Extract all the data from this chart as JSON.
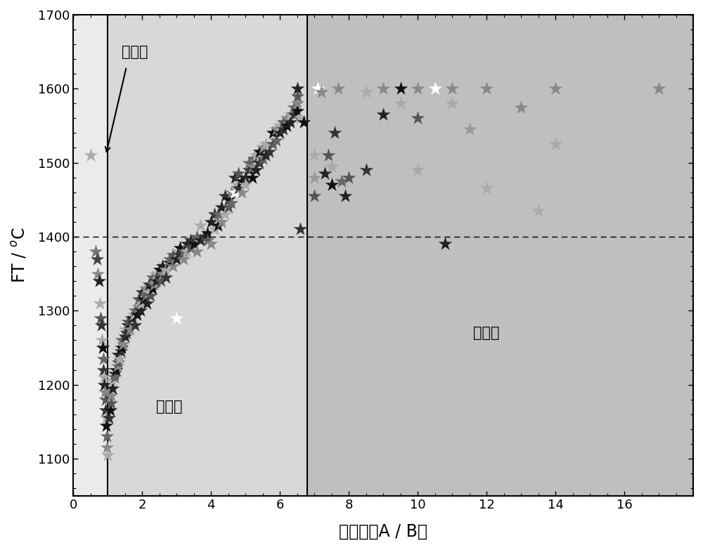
{
  "title": "",
  "xlabel": "酸碱比（A / B）",
  "ylabel": "FT / °C",
  "xlim": [
    0,
    18
  ],
  "ylim": [
    1050,
    1700
  ],
  "xticks": [
    0,
    2,
    4,
    6,
    8,
    10,
    12,
    14,
    16
  ],
  "yticks": [
    1100,
    1200,
    1300,
    1400,
    1500,
    1600,
    1700
  ],
  "vline1": 1.0,
  "vline2": 6.8,
  "hline": 1400,
  "bg_alkaline_color": "#ebebeb",
  "bg_neutral_color": "#d8d8d8",
  "bg_acidic_color": "#bfbfbf",
  "label_alkaline": "碱性灰",
  "label_neutral": "中性灰",
  "label_acidic": "酸性灰",
  "points": [
    [
      0.5,
      1510,
      "#aaaaaa"
    ],
    [
      0.65,
      1380,
      "#777777"
    ],
    [
      0.7,
      1370,
      "#444444"
    ],
    [
      0.72,
      1350,
      "#888888"
    ],
    [
      0.75,
      1340,
      "#222222"
    ],
    [
      0.78,
      1310,
      "#aaaaaa"
    ],
    [
      0.8,
      1290,
      "#555555"
    ],
    [
      0.82,
      1280,
      "#333333"
    ],
    [
      0.84,
      1260,
      "#aaaaaa"
    ],
    [
      0.85,
      1250,
      "#111111"
    ],
    [
      0.87,
      1235,
      "#666666"
    ],
    [
      0.88,
      1220,
      "#333333"
    ],
    [
      0.9,
      1210,
      "#aaaaaa"
    ],
    [
      0.9,
      1200,
      "#222222"
    ],
    [
      0.92,
      1190,
      "#888888"
    ],
    [
      0.93,
      1180,
      "#555555"
    ],
    [
      0.94,
      1165,
      "#333333"
    ],
    [
      0.95,
      1155,
      "#aaaaaa"
    ],
    [
      0.95,
      1145,
      "#111111"
    ],
    [
      0.97,
      1130,
      "#666666"
    ],
    [
      0.98,
      1115,
      "#888888"
    ],
    [
      1.0,
      1105,
      "#aaaaaa"
    ],
    [
      1.05,
      1155,
      "#333333"
    ],
    [
      1.08,
      1165,
      "#111111"
    ],
    [
      1.1,
      1175,
      "#555555"
    ],
    [
      1.1,
      1185,
      "#888888"
    ],
    [
      1.15,
      1195,
      "#222222"
    ],
    [
      1.15,
      1205,
      "#aaaaaa"
    ],
    [
      1.2,
      1215,
      "#333333"
    ],
    [
      1.2,
      1210,
      "#666666"
    ],
    [
      1.25,
      1220,
      "#111111"
    ],
    [
      1.28,
      1225,
      "#888888"
    ],
    [
      1.3,
      1230,
      "#555555"
    ],
    [
      1.3,
      1240,
      "#222222"
    ],
    [
      1.35,
      1235,
      "#aaaaaa"
    ],
    [
      1.38,
      1245,
      "#333333"
    ],
    [
      1.4,
      1250,
      "#111111"
    ],
    [
      1.4,
      1260,
      "#666666"
    ],
    [
      1.45,
      1255,
      "#888888"
    ],
    [
      1.5,
      1265,
      "#222222"
    ],
    [
      1.5,
      1275,
      "#aaaaaa"
    ],
    [
      1.55,
      1270,
      "#333333"
    ],
    [
      1.6,
      1280,
      "#111111"
    ],
    [
      1.6,
      1285,
      "#555555"
    ],
    [
      1.65,
      1275,
      "#888888"
    ],
    [
      1.7,
      1290,
      "#222222"
    ],
    [
      1.75,
      1295,
      "#aaaaaa"
    ],
    [
      1.8,
      1280,
      "#333333"
    ],
    [
      1.8,
      1300,
      "#666666"
    ],
    [
      1.85,
      1295,
      "#111111"
    ],
    [
      1.9,
      1305,
      "#888888"
    ],
    [
      1.9,
      1315,
      "#555555"
    ],
    [
      1.95,
      1300,
      "#222222"
    ],
    [
      2.0,
      1310,
      "#aaaaaa"
    ],
    [
      2.0,
      1325,
      "#333333"
    ],
    [
      2.05,
      1315,
      "#111111"
    ],
    [
      2.1,
      1320,
      "#666666"
    ],
    [
      2.1,
      1330,
      "#888888"
    ],
    [
      2.15,
      1310,
      "#222222"
    ],
    [
      2.2,
      1325,
      "#aaaaaa"
    ],
    [
      2.2,
      1335,
      "#333333"
    ],
    [
      2.25,
      1320,
      "#555555"
    ],
    [
      2.3,
      1330,
      "#111111"
    ],
    [
      2.3,
      1345,
      "#666666"
    ],
    [
      2.35,
      1335,
      "#888888"
    ],
    [
      2.4,
      1340,
      "#222222"
    ],
    [
      2.4,
      1350,
      "#aaaaaa"
    ],
    [
      2.5,
      1345,
      "#333333"
    ],
    [
      2.5,
      1355,
      "#111111"
    ],
    [
      2.55,
      1340,
      "#555555"
    ],
    [
      2.6,
      1350,
      "#888888"
    ],
    [
      2.6,
      1360,
      "#222222"
    ],
    [
      2.7,
      1355,
      "#aaaaaa"
    ],
    [
      2.7,
      1345,
      "#333333"
    ],
    [
      2.8,
      1365,
      "#111111"
    ],
    [
      2.8,
      1370,
      "#666666"
    ],
    [
      2.9,
      1360,
      "#888888"
    ],
    [
      2.9,
      1375,
      "#555555"
    ],
    [
      3.0,
      1370,
      "#222222"
    ],
    [
      3.0,
      1290,
      "#ffffff"
    ],
    [
      3.05,
      1380,
      "#aaaaaa"
    ],
    [
      3.1,
      1375,
      "#333333"
    ],
    [
      3.1,
      1385,
      "#111111"
    ],
    [
      3.2,
      1380,
      "#666666"
    ],
    [
      3.2,
      1370,
      "#888888"
    ],
    [
      3.3,
      1390,
      "#222222"
    ],
    [
      3.3,
      1380,
      "#aaaaaa"
    ],
    [
      3.4,
      1395,
      "#333333"
    ],
    [
      3.4,
      1385,
      "#555555"
    ],
    [
      3.5,
      1390,
      "#111111"
    ],
    [
      3.6,
      1400,
      "#666666"
    ],
    [
      3.6,
      1380,
      "#888888"
    ],
    [
      3.7,
      1395,
      "#222222"
    ],
    [
      3.7,
      1415,
      "#aaaaaa"
    ],
    [
      3.8,
      1400,
      "#333333"
    ],
    [
      3.9,
      1405,
      "#111111"
    ],
    [
      3.9,
      1395,
      "#555555"
    ],
    [
      4.0,
      1390,
      "#888888"
    ],
    [
      4.0,
      1420,
      "#222222"
    ],
    [
      4.1,
      1410,
      "#aaaaaa"
    ],
    [
      4.1,
      1430,
      "#333333"
    ],
    [
      4.2,
      1415,
      "#111111"
    ],
    [
      4.2,
      1430,
      "#666666"
    ],
    [
      4.3,
      1420,
      "#888888"
    ],
    [
      4.3,
      1440,
      "#222222"
    ],
    [
      4.4,
      1430,
      "#aaaaaa"
    ],
    [
      4.4,
      1455,
      "#333333"
    ],
    [
      4.5,
      1440,
      "#555555"
    ],
    [
      4.5,
      1450,
      "#111111"
    ],
    [
      4.6,
      1445,
      "#666666"
    ],
    [
      4.6,
      1460,
      "#888888"
    ],
    [
      4.7,
      1460,
      "#ffffff"
    ],
    [
      4.7,
      1480,
      "#222222"
    ],
    [
      4.75,
      1470,
      "#aaaaaa"
    ],
    [
      4.8,
      1465,
      "#333333"
    ],
    [
      4.8,
      1485,
      "#555555"
    ],
    [
      4.9,
      1475,
      "#111111"
    ],
    [
      4.9,
      1460,
      "#888888"
    ],
    [
      5.0,
      1480,
      "#222222"
    ],
    [
      5.0,
      1470,
      "#aaaaaa"
    ],
    [
      5.1,
      1490,
      "#333333"
    ],
    [
      5.1,
      1500,
      "#666666"
    ],
    [
      5.2,
      1480,
      "#111111"
    ],
    [
      5.2,
      1495,
      "#888888"
    ],
    [
      5.25,
      1505,
      "#555555"
    ],
    [
      5.3,
      1490,
      "#222222"
    ],
    [
      5.3,
      1510,
      "#aaaaaa"
    ],
    [
      5.4,
      1500,
      "#333333"
    ],
    [
      5.4,
      1515,
      "#111111"
    ],
    [
      5.5,
      1505,
      "#666666"
    ],
    [
      5.5,
      1520,
      "#888888"
    ],
    [
      5.6,
      1510,
      "#222222"
    ],
    [
      5.6,
      1525,
      "#aaaaaa"
    ],
    [
      5.7,
      1515,
      "#333333"
    ],
    [
      5.8,
      1525,
      "#555555"
    ],
    [
      5.8,
      1540,
      "#111111"
    ],
    [
      5.9,
      1530,
      "#666666"
    ],
    [
      5.9,
      1545,
      "#888888"
    ],
    [
      6.0,
      1540,
      "#222222"
    ],
    [
      6.0,
      1550,
      "#aaaaaa"
    ],
    [
      6.1,
      1545,
      "#333333"
    ],
    [
      6.1,
      1555,
      "#555555"
    ],
    [
      6.2,
      1550,
      "#111111"
    ],
    [
      6.2,
      1560,
      "#888888"
    ],
    [
      6.3,
      1555,
      "#222222"
    ],
    [
      6.3,
      1565,
      "#aaaaaa"
    ],
    [
      6.4,
      1565,
      "#333333"
    ],
    [
      6.4,
      1575,
      "#666666"
    ],
    [
      6.5,
      1570,
      "#111111"
    ],
    [
      6.5,
      1580,
      "#888888"
    ],
    [
      6.5,
      1590,
      "#555555"
    ],
    [
      6.5,
      1600,
      "#222222"
    ],
    [
      6.6,
      1560,
      "#aaaaaa"
    ],
    [
      6.6,
      1410,
      "#333333"
    ],
    [
      6.7,
      1555,
      "#111111"
    ],
    [
      7.0,
      1510,
      "#aaaaaa"
    ],
    [
      7.0,
      1480,
      "#999999"
    ],
    [
      7.0,
      1455,
      "#555555"
    ],
    [
      7.1,
      1600,
      "#ffffff"
    ],
    [
      7.2,
      1595,
      "#888888"
    ],
    [
      7.3,
      1485,
      "#222222"
    ],
    [
      7.4,
      1510,
      "#555555"
    ],
    [
      7.5,
      1470,
      "#111111"
    ],
    [
      7.5,
      1495,
      "#aaaaaa"
    ],
    [
      7.6,
      1540,
      "#333333"
    ],
    [
      7.7,
      1600,
      "#888888"
    ],
    [
      7.8,
      1475,
      "#666666"
    ],
    [
      7.9,
      1455,
      "#222222"
    ],
    [
      8.0,
      1480,
      "#555555"
    ],
    [
      8.5,
      1595,
      "#aaaaaa"
    ],
    [
      8.5,
      1490,
      "#333333"
    ],
    [
      9.0,
      1600,
      "#888888"
    ],
    [
      9.0,
      1565,
      "#222222"
    ],
    [
      9.5,
      1600,
      "#111111"
    ],
    [
      9.5,
      1580,
      "#aaaaaa"
    ],
    [
      10.0,
      1600,
      "#888888"
    ],
    [
      10.0,
      1560,
      "#555555"
    ],
    [
      10.0,
      1490,
      "#aaaaaa"
    ],
    [
      10.5,
      1600,
      "#ffffff"
    ],
    [
      10.8,
      1390,
      "#222222"
    ],
    [
      11.0,
      1600,
      "#888888"
    ],
    [
      11.0,
      1580,
      "#aaaaaa"
    ],
    [
      11.5,
      1545,
      "#999999"
    ],
    [
      12.0,
      1600,
      "#888888"
    ],
    [
      12.0,
      1465,
      "#aaaaaa"
    ],
    [
      13.0,
      1575,
      "#888888"
    ],
    [
      13.5,
      1435,
      "#aaaaaa"
    ],
    [
      14.0,
      1600,
      "#888888"
    ],
    [
      14.0,
      1525,
      "#aaaaaa"
    ],
    [
      17.0,
      1600,
      "#888888"
    ]
  ]
}
